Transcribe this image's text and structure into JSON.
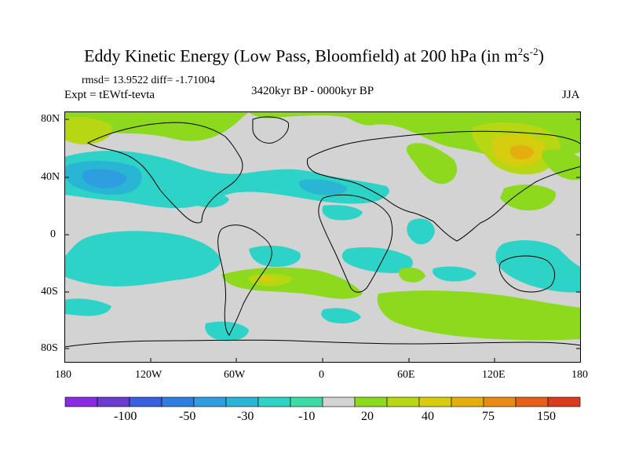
{
  "title": {
    "main": "Eddy Kinetic Energy (Low Pass, Bloomfield) at 200 hPa (in m",
    "sup1": "2",
    "mid": "s",
    "sup2": "-2",
    "end": ")"
  },
  "stats": "rmsd= 13.9522 diff= -1.71004",
  "expt": "Expt = tEWtf-tevta",
  "period": "3420kyr BP - 0000kyr BP",
  "season": "JJA",
  "y_ticks": [
    "80N",
    "40N",
    "0",
    "40S",
    "80S"
  ],
  "x_ticks": [
    "180",
    "120W",
    "60W",
    "0",
    "60E",
    "120E",
    "180"
  ],
  "legend": {
    "colors": [
      "#8a2be2",
      "#6a3ccf",
      "#3a5fe0",
      "#2f7ddd",
      "#2f9ee0",
      "#29b6d4",
      "#2ed3c8",
      "#3ddba8",
      "#d3d3d3",
      "#8cd91e",
      "#b7d614",
      "#d7cc0e",
      "#e3ae0e",
      "#e98a12",
      "#e6601a",
      "#d83a1e"
    ],
    "labels": [
      "-100",
      "-50",
      "-30",
      "-10",
      "20",
      "40",
      "75",
      "150"
    ]
  },
  "palette": {
    "neutral": "#d3d3d3",
    "green": "#8cd91e",
    "yellowgreen": "#b7d614",
    "yellow": "#d7cc0e",
    "orange": "#e3ae0e",
    "cyan": "#2ed3c8",
    "teal": "#29b6d4",
    "blue": "#2f9ee0",
    "deepblue": "#2f7ddd"
  }
}
